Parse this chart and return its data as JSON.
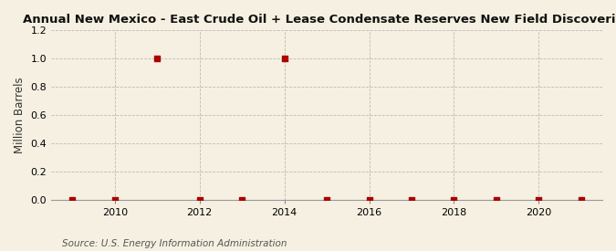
{
  "title": "Annual New Mexico - East Crude Oil + Lease Condensate Reserves New Field Discoveries",
  "ylabel": "Million Barrels",
  "source": "Source: U.S. Energy Information Administration",
  "background_color": "#f5f0e1",
  "x_data": [
    2009,
    2010,
    2011,
    2012,
    2013,
    2014,
    2015,
    2016,
    2017,
    2018,
    2019,
    2020,
    2021
  ],
  "y_data": [
    0.0,
    0.0,
    1.0,
    0.0,
    0.0,
    1.0,
    0.0,
    0.0,
    0.0,
    0.0,
    0.0,
    0.0,
    0.0
  ],
  "point_color": "#aa0000",
  "ylim": [
    0.0,
    1.2
  ],
  "yticks": [
    0.0,
    0.2,
    0.4,
    0.6,
    0.8,
    1.0,
    1.2
  ],
  "xlim": [
    2008.5,
    2021.5
  ],
  "xticks": [
    2010,
    2012,
    2014,
    2016,
    2018,
    2020
  ],
  "grid_color": "#bbbbbb",
  "title_fontsize": 9.5,
  "ylabel_fontsize": 8.5,
  "tick_fontsize": 8,
  "source_fontsize": 7.5,
  "point_size": 18
}
